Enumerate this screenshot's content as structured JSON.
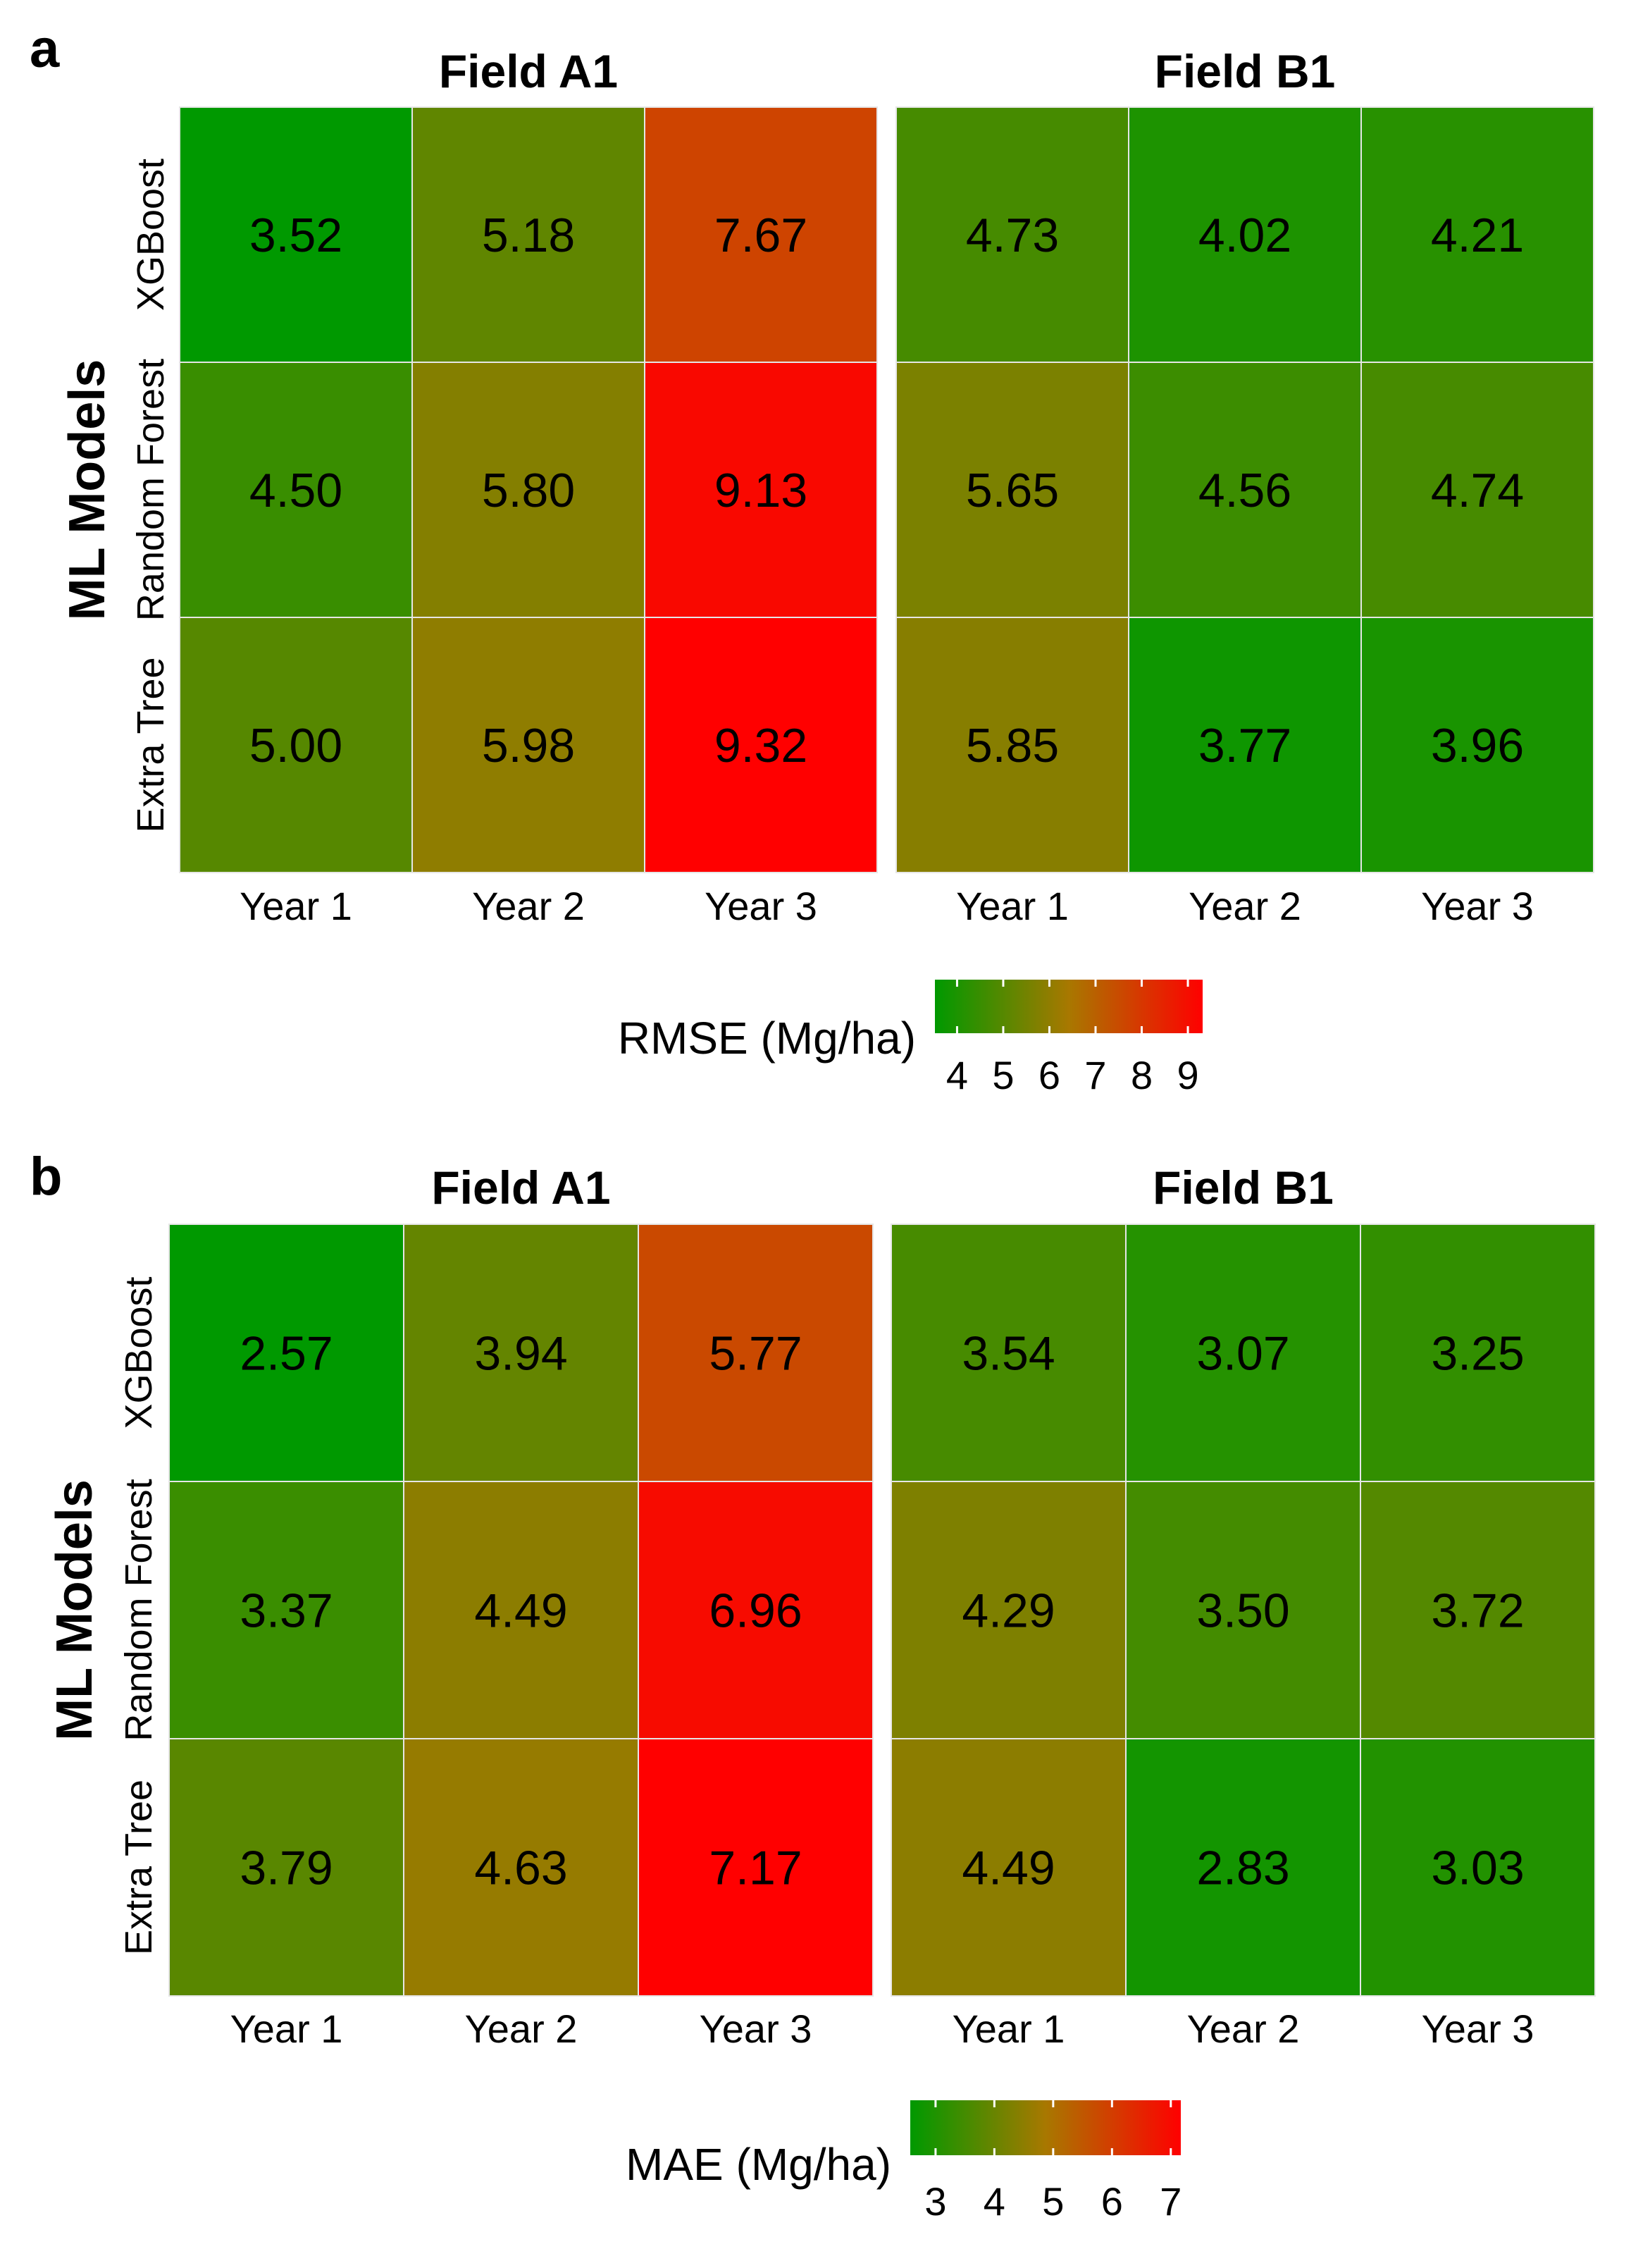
{
  "chart_data": [
    {
      "type": "heatmap",
      "panel": "a",
      "metric": "RMSE (Mg/ha)",
      "ylabel": "ML Models",
      "rows": [
        "XGBoost",
        "Random Forest",
        "Extra Tree"
      ],
      "columns": [
        "Year 1",
        "Year 2",
        "Year 3"
      ],
      "facets": [
        {
          "title": "Field A1",
          "values": [
            [
              "3.52",
              "5.18",
              "7.67"
            ],
            [
              "4.50",
              "5.80",
              "9.13"
            ],
            [
              "5.00",
              "5.98",
              "9.32"
            ]
          ]
        },
        {
          "title": "Field B1",
          "values": [
            [
              "4.73",
              "4.02",
              "4.21"
            ],
            [
              "5.65",
              "4.56",
              "4.74"
            ],
            [
              "5.85",
              "3.77",
              "3.96"
            ]
          ]
        }
      ],
      "colorbar": {
        "title": "RMSE (Mg/ha)",
        "range": [
          3.52,
          9.32
        ],
        "ticks": [
          "4",
          "5",
          "6",
          "7",
          "8",
          "9"
        ],
        "low_color": "#009900",
        "mid_color": "#a87800",
        "high_color": "#ff0000"
      }
    },
    {
      "type": "heatmap",
      "panel": "b",
      "metric": "MAE (Mg/ha)",
      "ylabel": "ML Models",
      "rows": [
        "XGBoost",
        "Random Forest",
        "Extra Tree"
      ],
      "columns": [
        "Year 1",
        "Year 2",
        "Year 3"
      ],
      "facets": [
        {
          "title": "Field A1",
          "values": [
            [
              "2.57",
              "3.94",
              "5.77"
            ],
            [
              "3.37",
              "4.49",
              "6.96"
            ],
            [
              "3.79",
              "4.63",
              "7.17"
            ]
          ]
        },
        {
          "title": "Field B1",
          "values": [
            [
              "3.54",
              "3.07",
              "3.25"
            ],
            [
              "4.29",
              "3.50",
              "3.72"
            ],
            [
              "4.49",
              "2.83",
              "3.03"
            ]
          ]
        }
      ],
      "colorbar": {
        "title": "MAE (Mg/ha)",
        "range": [
          2.57,
          7.17
        ],
        "ticks": [
          "3",
          "4",
          "5",
          "6",
          "7"
        ],
        "low_color": "#009900",
        "mid_color": "#a87800",
        "high_color": "#ff0000"
      }
    }
  ]
}
